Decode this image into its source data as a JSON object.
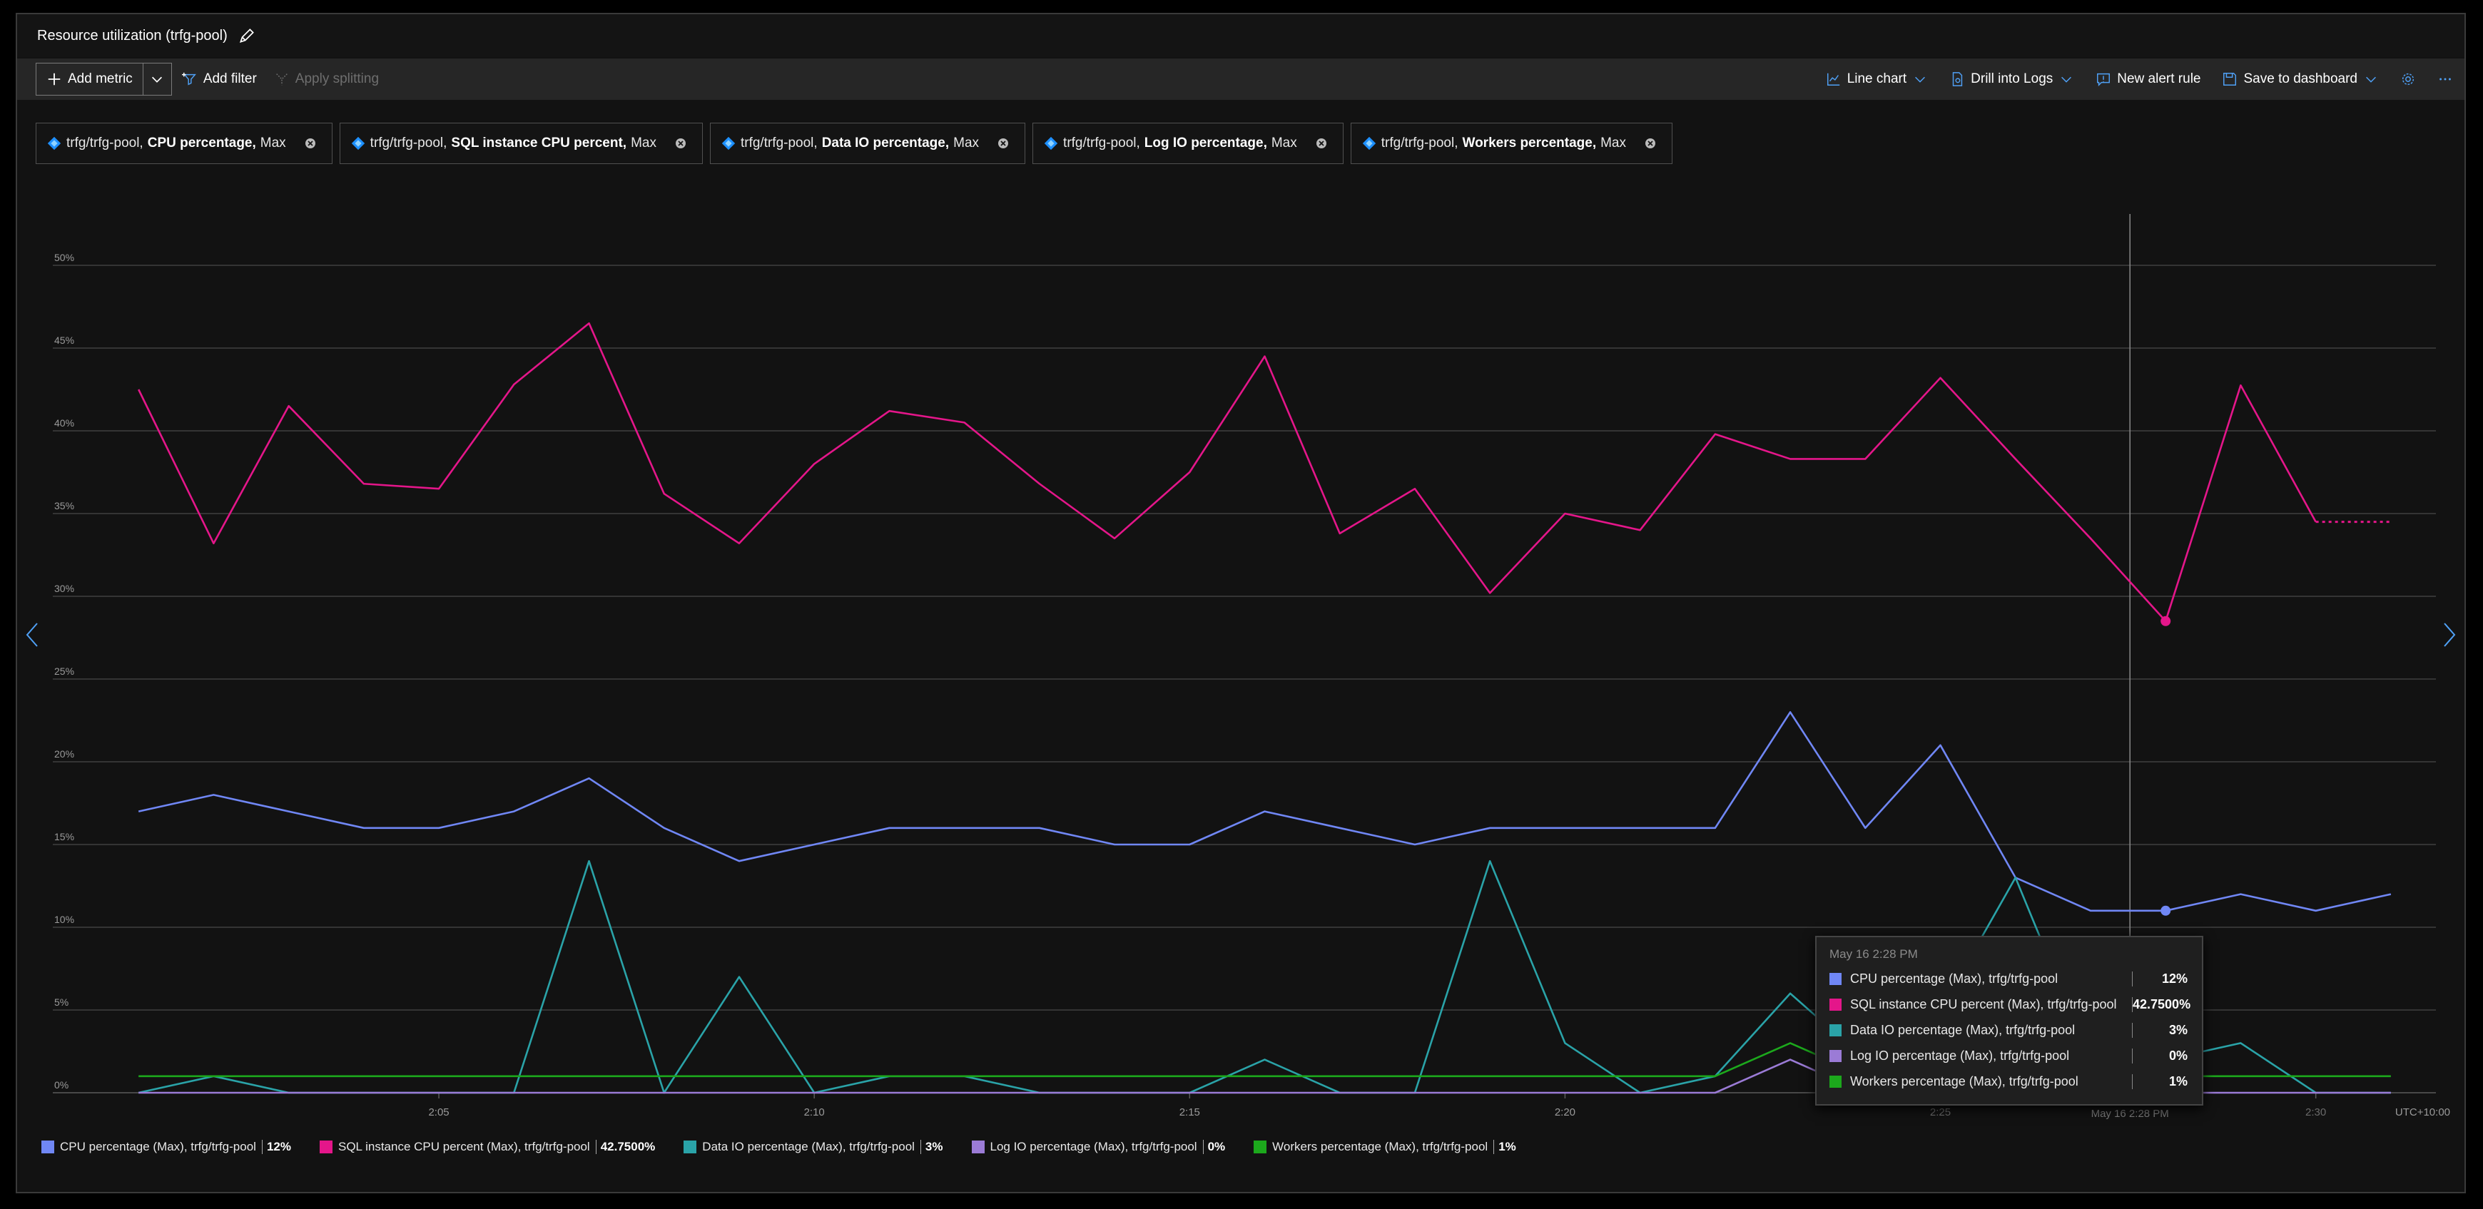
{
  "window": {
    "title": "Resource utilization (trfg-pool)"
  },
  "toolbar": {
    "add_metric": "Add metric",
    "add_filter": "Add filter",
    "apply_splitting": "Apply splitting",
    "line_chart": "Line chart",
    "drill_into_logs": "Drill into Logs",
    "new_alert_rule": "New alert rule",
    "save_to_dashboard": "Save to dashboard"
  },
  "pills": [
    {
      "resource": "trfg/trfg-pool,",
      "metric": "CPU percentage,",
      "agg": "Max"
    },
    {
      "resource": "trfg/trfg-pool,",
      "metric": "SQL instance CPU percent,",
      "agg": "Max"
    },
    {
      "resource": "trfg/trfg-pool,",
      "metric": "Data IO percentage,",
      "agg": "Max"
    },
    {
      "resource": "trfg/trfg-pool,",
      "metric": "Log IO percentage,",
      "agg": "Max"
    },
    {
      "resource": "trfg/trfg-pool,",
      "metric": "Workers percentage,",
      "agg": "Max"
    }
  ],
  "tooltip": {
    "date": "May 16 2:28 PM",
    "rows": [
      {
        "name": "CPU percentage (Max), trfg/trfg-pool",
        "value": "12%",
        "color": "#7087f5"
      },
      {
        "name": "SQL instance CPU percent (Max), trfg/trfg-pool",
        "value": "42.7500%",
        "color": "#e4168a"
      },
      {
        "name": "Data IO percentage (Max), trfg/trfg-pool",
        "value": "3%",
        "color": "#2aa3a8"
      },
      {
        "name": "Log IO percentage (Max), trfg/trfg-pool",
        "value": "0%",
        "color": "#9b7bd6"
      },
      {
        "name": "Workers percentage (Max), trfg/trfg-pool",
        "value": "1%",
        "color": "#1ca81c"
      }
    ]
  },
  "legend": [
    {
      "name": "CPU percentage (Max), trfg/trfg-pool",
      "value": "12%",
      "color": "#7087f5"
    },
    {
      "name": "SQL instance CPU percent (Max), trfg/trfg-pool",
      "value": "42.7500%",
      "color": "#e4168a"
    },
    {
      "name": "Data IO percentage (Max), trfg/trfg-pool",
      "value": "3%",
      "color": "#2aa3a8"
    },
    {
      "name": "Log IO percentage (Max), trfg/trfg-pool",
      "value": "0%",
      "color": "#9b7bd6"
    },
    {
      "name": "Workers percentage (Max), trfg/trfg-pool",
      "value": "1%",
      "color": "#1ca81c"
    }
  ],
  "chart_data": {
    "type": "line",
    "ylim": [
      0,
      50
    ],
    "y_ticks": [
      "0%",
      "5%",
      "10%",
      "15%",
      "20%",
      "25%",
      "30%",
      "35%",
      "40%",
      "45%",
      "50%"
    ],
    "x_tick_labels": [
      "2:05",
      "2:10",
      "2:15",
      "2:20",
      "2:25",
      "2:30"
    ],
    "x_tick_minutes": [
      5,
      10,
      15,
      20,
      25,
      30
    ],
    "timezone": "UTC+10:00",
    "cursor_label": "May 16 2:28 PM",
    "cursor_minute": 28,
    "x_start_minute": 1,
    "x_end_minute": 31,
    "grid": true,
    "series": [
      {
        "name": "CPU percentage (Max), trfg/trfg-pool",
        "color": "#7087f5",
        "values": [
          17,
          18,
          17,
          16,
          16,
          17,
          19,
          16,
          14,
          15,
          16,
          16,
          16,
          15,
          15,
          17,
          16,
          15,
          16,
          16,
          16,
          16,
          23,
          16,
          21,
          13,
          11,
          11,
          12,
          11,
          12
        ]
      },
      {
        "name": "SQL instance CPU percent (Max), trfg/trfg-pool",
        "color": "#e4168a",
        "values": [
          42.5,
          33.2,
          41.5,
          36.8,
          36.5,
          42.8,
          46.5,
          36.2,
          33.2,
          38,
          41.2,
          40.5,
          36.8,
          33.5,
          37.5,
          44.5,
          33.8,
          36.5,
          30.2,
          35,
          34,
          39.8,
          38.3,
          38.3,
          43.2,
          38.3,
          33.5,
          28.5,
          42.75,
          34.5,
          34.5
        ]
      },
      {
        "name": "Data IO percentage (Max), trfg/trfg-pool",
        "color": "#2aa3a8",
        "values": [
          0,
          1,
          0,
          0,
          0,
          0,
          14,
          0,
          7,
          0,
          1,
          1,
          0,
          0,
          0,
          2,
          0,
          0,
          14,
          3,
          0,
          1,
          6,
          2,
          5,
          13,
          2,
          2,
          3,
          0,
          0
        ]
      },
      {
        "name": "Log IO percentage (Max), trfg/trfg-pool",
        "color": "#9b7bd6",
        "values": [
          0,
          0,
          0,
          0,
          0,
          0,
          0,
          0,
          0,
          0,
          0,
          0,
          0,
          0,
          0,
          0,
          0,
          0,
          0,
          0,
          0,
          0,
          2,
          0,
          0,
          0,
          0,
          0,
          0,
          0,
          0
        ]
      },
      {
        "name": "Workers percentage (Max), trfg/trfg-pool",
        "color": "#1ca81c",
        "values": [
          1,
          1,
          1,
          1,
          1,
          1,
          1,
          1,
          1,
          1,
          1,
          1,
          1,
          1,
          1,
          1,
          1,
          1,
          1,
          1,
          1,
          1,
          3,
          1,
          1,
          1,
          1,
          1,
          1,
          1,
          1
        ]
      }
    ]
  }
}
